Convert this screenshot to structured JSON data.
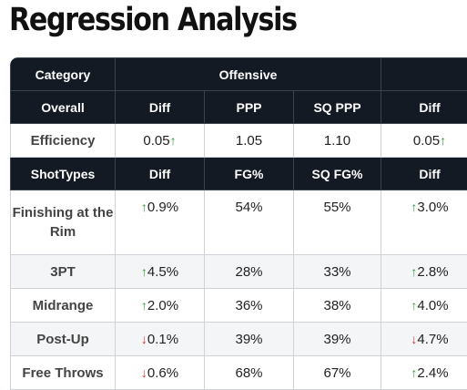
{
  "title": "Regression Analysis",
  "header_top": {
    "category": "Category",
    "group": "Offensive"
  },
  "overall_header": {
    "label": "Overall",
    "c1": "Diff",
    "c2": "PPP",
    "c3": "SQ PPP",
    "c4": "Diff"
  },
  "efficiency": {
    "label": "Efficiency",
    "diff": "0.05",
    "diff_dir": "up",
    "ppp": "1.05",
    "sq_ppp": "1.10",
    "diff2": "0.05",
    "diff2_dir": "up"
  },
  "shot_header": {
    "label": "ShotTypes",
    "c1": "Diff",
    "c2": "FG%",
    "c3": "SQ FG%",
    "c4": "Diff"
  },
  "rows": [
    {
      "label": "Finishing at the Rim",
      "diff": "0.9%",
      "diff_dir": "up",
      "fg": "54%",
      "sq_fg": "55%",
      "diff2": "3.0%",
      "diff2_dir": "up"
    },
    {
      "label": "3PT",
      "diff": "4.5%",
      "diff_dir": "up",
      "fg": "28%",
      "sq_fg": "33%",
      "diff2": "2.8%",
      "diff2_dir": "up"
    },
    {
      "label": "Midrange",
      "diff": "2.0%",
      "diff_dir": "up",
      "fg": "36%",
      "sq_fg": "38%",
      "diff2": "4.0%",
      "diff2_dir": "up"
    },
    {
      "label": "Post-Up",
      "diff": "0.1%",
      "diff_dir": "down",
      "fg": "39%",
      "sq_fg": "39%",
      "diff2": "4.7%",
      "diff2_dir": "down"
    },
    {
      "label": "Free Throws",
      "diff": "0.6%",
      "diff_dir": "down",
      "fg": "68%",
      "sq_fg": "67%",
      "diff2": "2.4%",
      "diff2_dir": "up"
    }
  ],
  "colors": {
    "header_bg": "#141a24",
    "up": "#2f9a3a",
    "down": "#d2312e",
    "alt_row": "#f4f5f7"
  },
  "icons": {
    "up": "arrow-up-icon",
    "down": "arrow-down-icon"
  }
}
